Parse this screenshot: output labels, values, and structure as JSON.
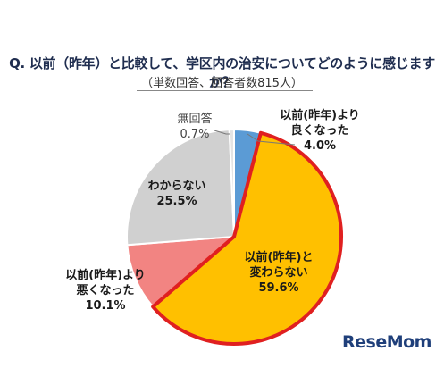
{
  "title": "Q. 以前（昨年）と比較して、学区内の治安についてどのように感じますか？",
  "subtitle": "（単数回答、回答者数815人）",
  "logo": {
    "text": "ReseMom"
  },
  "colors": {
    "better": "#5b9bd5",
    "same": "#ffc000",
    "worse": "#f28482",
    "unknown": "#d0d0d0",
    "no_answer": "#e4e4e4",
    "highlight_border": "#e02020"
  },
  "chart_data": {
    "type": "pie",
    "title": "Q. 以前（昨年）と比較して、学区内の治安についてどのように感じますか？",
    "subtitle": "（単数回答、回答者数815人）",
    "slices": [
      {
        "id": "better",
        "label": "以前(昨年)より\n良くなった",
        "value": 4.0,
        "value_label": "4.0%",
        "color": "#5b9bd5"
      },
      {
        "id": "same",
        "label": "以前(昨年)と\n変わらない",
        "value": 59.6,
        "value_label": "59.6%",
        "color": "#ffc000",
        "highlighted": true
      },
      {
        "id": "worse",
        "label": "以前(昨年)より\n悪くなった",
        "value": 10.1,
        "value_label": "10.1%",
        "color": "#f28482"
      },
      {
        "id": "unknown",
        "label": "わからない",
        "value": 25.5,
        "value_label": "25.5%",
        "color": "#d0d0d0"
      },
      {
        "id": "no_answer",
        "label": "無回答",
        "value": 0.7,
        "value_label": "0.7%",
        "color": "#e4e4e4"
      }
    ],
    "start": "top",
    "direction": "clockwise"
  }
}
